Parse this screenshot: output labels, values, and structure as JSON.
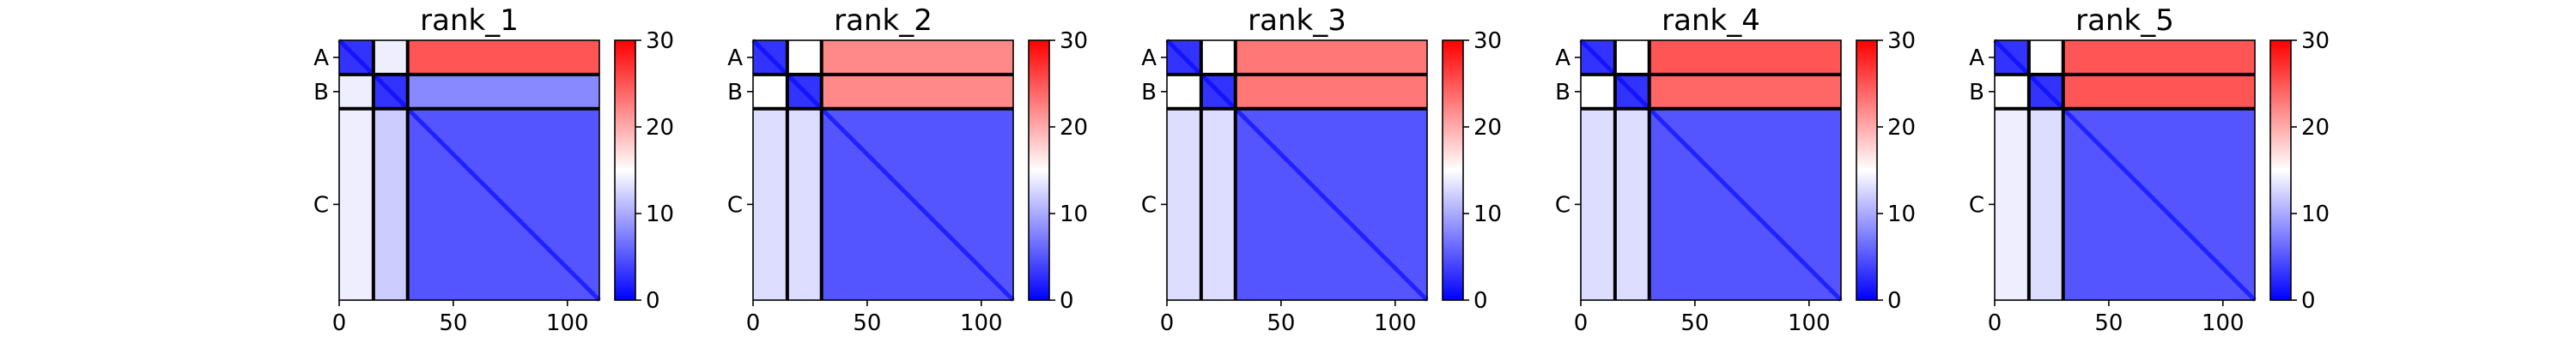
{
  "chart_data": [
    {
      "type": "heatmap",
      "title": "rank_1",
      "chains": [
        {
          "label": "A",
          "start": 0,
          "end": 15
        },
        {
          "label": "B",
          "start": 15,
          "end": 30
        },
        {
          "label": "C",
          "start": 30,
          "end": 114
        }
      ],
      "xlim": [
        0,
        114
      ],
      "xticks": [
        0,
        50,
        100
      ],
      "colorbar": {
        "range": [
          0,
          30
        ],
        "ticks": [
          0,
          10,
          20,
          30
        ],
        "colors": [
          "#0000ff",
          "#ffffff",
          "#ff0000"
        ]
      },
      "block_mean_values": {
        "AA": 3,
        "AB": 14,
        "AC": 25,
        "BA": 14,
        "BB": 3,
        "BC": 8,
        "CA": 14,
        "CB": 12,
        "CC": 5
      }
    },
    {
      "type": "heatmap",
      "title": "rank_2",
      "chains": [
        {
          "label": "A",
          "start": 0,
          "end": 15
        },
        {
          "label": "B",
          "start": 15,
          "end": 30
        },
        {
          "label": "C",
          "start": 30,
          "end": 114
        }
      ],
      "xlim": [
        0,
        114
      ],
      "xticks": [
        0,
        50,
        100
      ],
      "colorbar": {
        "range": [
          0,
          30
        ],
        "ticks": [
          0,
          10,
          20,
          30
        ],
        "colors": [
          "#0000ff",
          "#ffffff",
          "#ff0000"
        ]
      },
      "block_mean_values": {
        "AA": 3,
        "AB": 15,
        "AC": 22,
        "BA": 15,
        "BB": 3,
        "BC": 22,
        "CA": 13,
        "CB": 13,
        "CC": 5
      }
    },
    {
      "type": "heatmap",
      "title": "rank_3",
      "chains": [
        {
          "label": "A",
          "start": 0,
          "end": 15
        },
        {
          "label": "B",
          "start": 15,
          "end": 30
        },
        {
          "label": "C",
          "start": 30,
          "end": 114
        }
      ],
      "xlim": [
        0,
        114
      ],
      "xticks": [
        0,
        50,
        100
      ],
      "colorbar": {
        "range": [
          0,
          30
        ],
        "ticks": [
          0,
          10,
          20,
          30
        ],
        "colors": [
          "#0000ff",
          "#ffffff",
          "#ff0000"
        ]
      },
      "block_mean_values": {
        "AA": 3,
        "AB": 15,
        "AC": 23,
        "BA": 15,
        "BB": 3,
        "BC": 23,
        "CA": 13,
        "CB": 13,
        "CC": 5
      }
    },
    {
      "type": "heatmap",
      "title": "rank_4",
      "chains": [
        {
          "label": "A",
          "start": 0,
          "end": 15
        },
        {
          "label": "B",
          "start": 15,
          "end": 30
        },
        {
          "label": "C",
          "start": 30,
          "end": 114
        }
      ],
      "xlim": [
        0,
        114
      ],
      "xticks": [
        0,
        50,
        100
      ],
      "colorbar": {
        "range": [
          0,
          30
        ],
        "ticks": [
          0,
          10,
          20,
          30
        ],
        "colors": [
          "#0000ff",
          "#ffffff",
          "#ff0000"
        ]
      },
      "block_mean_values": {
        "AA": 3,
        "AB": 15,
        "AC": 25,
        "BA": 15,
        "BB": 3,
        "BC": 24,
        "CA": 13,
        "CB": 13,
        "CC": 5
      }
    },
    {
      "type": "heatmap",
      "title": "rank_5",
      "chains": [
        {
          "label": "A",
          "start": 0,
          "end": 15
        },
        {
          "label": "B",
          "start": 15,
          "end": 30
        },
        {
          "label": "C",
          "start": 30,
          "end": 114
        }
      ],
      "xlim": [
        0,
        114
      ],
      "xticks": [
        0,
        50,
        100
      ],
      "colorbar": {
        "range": [
          0,
          30
        ],
        "ticks": [
          0,
          10,
          20,
          30
        ],
        "colors": [
          "#0000ff",
          "#ffffff",
          "#ff0000"
        ]
      },
      "block_mean_values": {
        "AA": 3,
        "AB": 15,
        "AC": 25,
        "BA": 15,
        "BB": 3,
        "BC": 25,
        "CA": 14,
        "CB": 13,
        "CC": 5
      }
    }
  ]
}
